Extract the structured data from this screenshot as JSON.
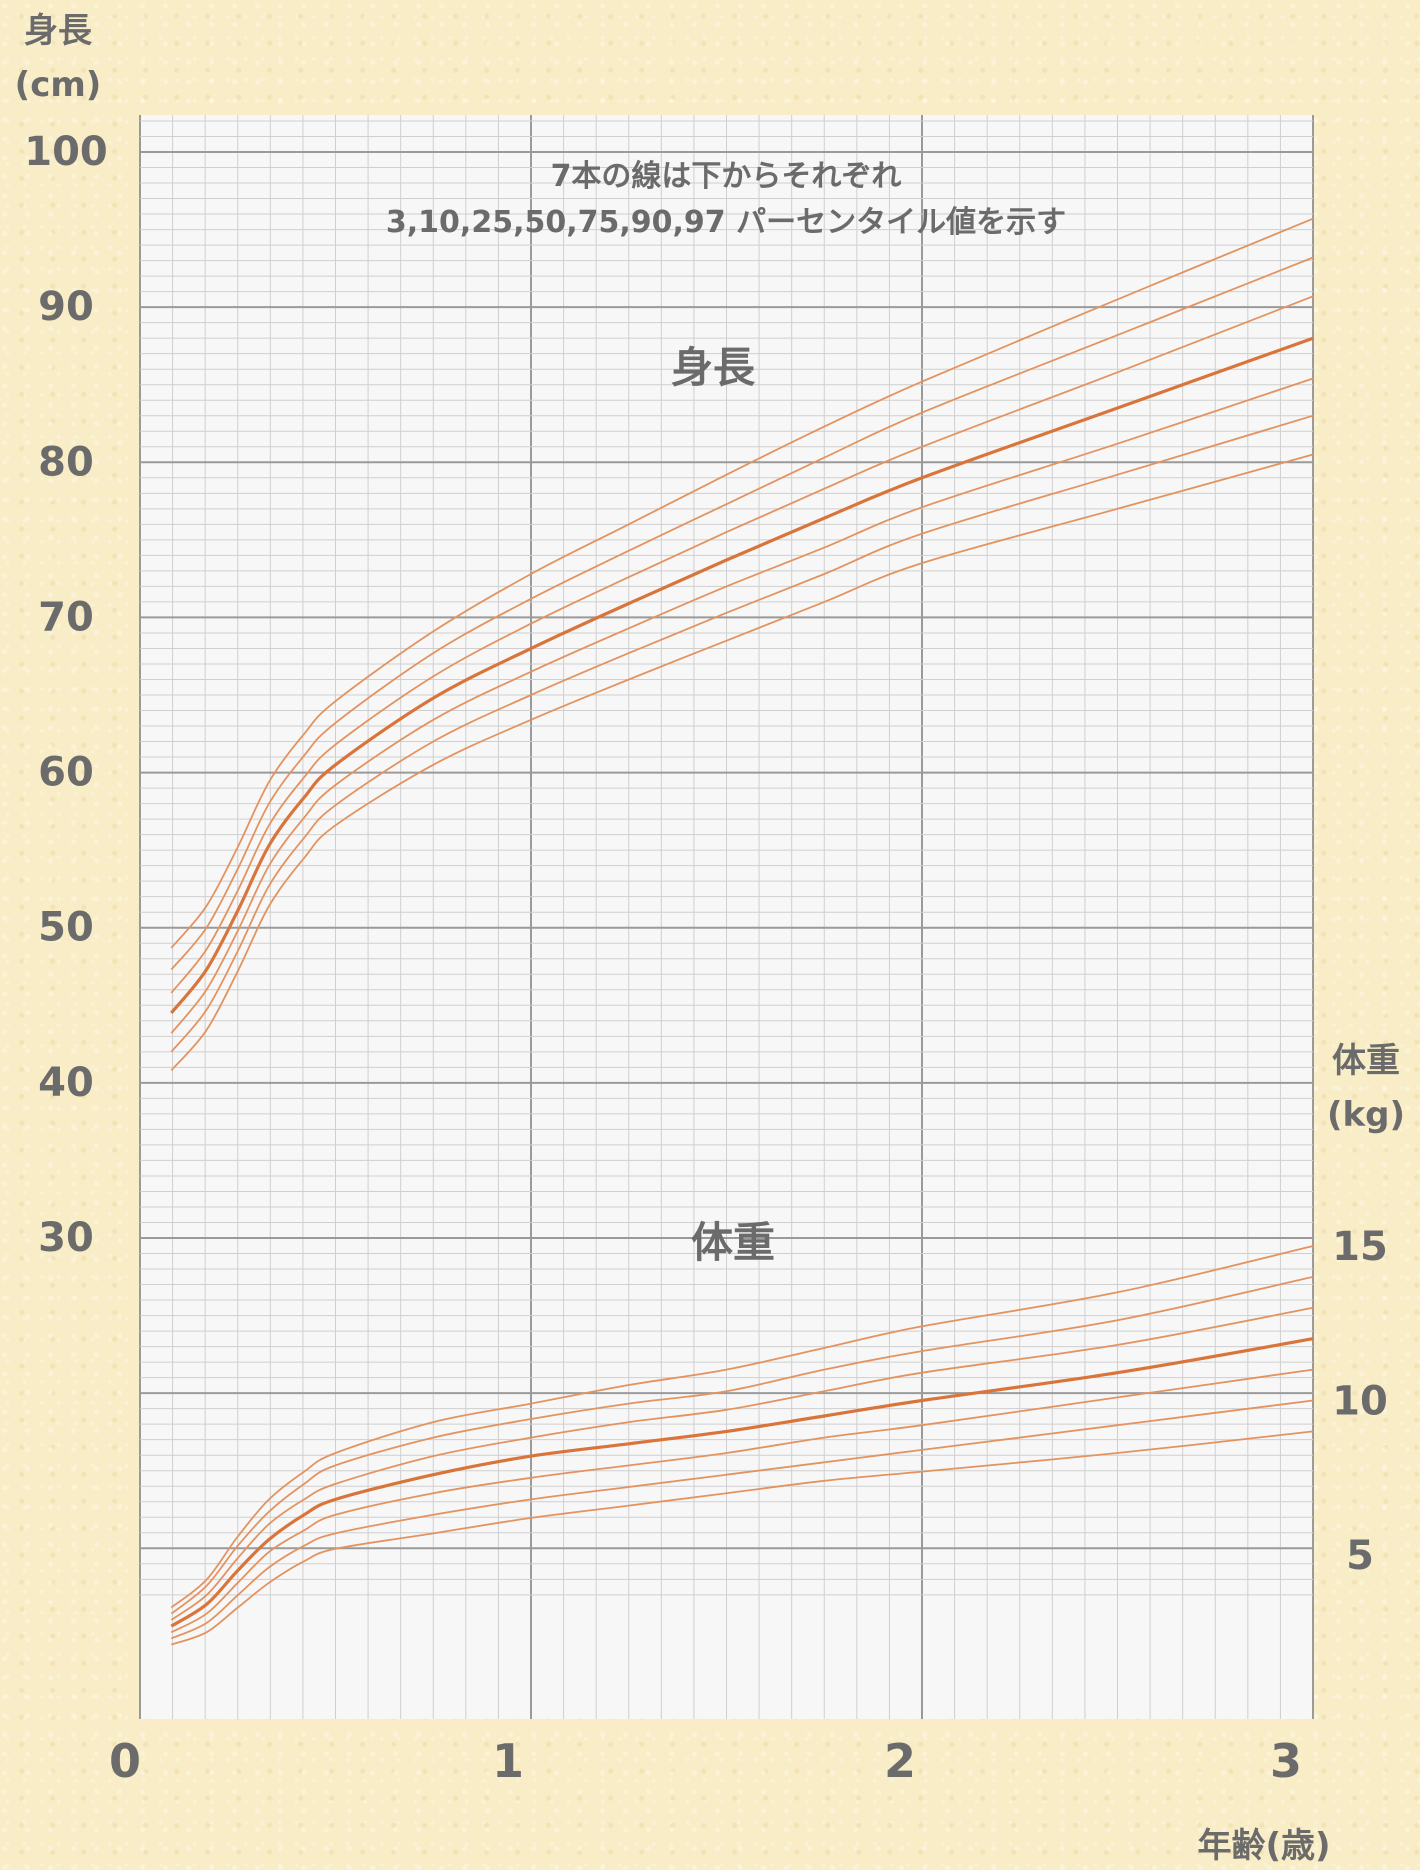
{
  "chart_data": {
    "type": "line",
    "note_line1": "7本の線は下からそれぞれ",
    "note_line2": "3,10,25,50,75,90,97 パーセンタイル値を示す",
    "height_axis_label": [
      "身長",
      "(cm)"
    ],
    "weight_axis_label": [
      "体重",
      "(kg)"
    ],
    "xlabel": "年齢(歳)",
    "height_series_label": "身長",
    "weight_series_label": "体重",
    "xlim": [
      0,
      3
    ],
    "height_ylim": [
      25,
      100
    ],
    "weight_ylim": [
      0,
      17
    ],
    "x_ticks": [
      "0",
      "1",
      "2",
      "3"
    ],
    "height_ticks": [
      "100",
      "90",
      "80",
      "70",
      "60",
      "50",
      "40",
      "30"
    ],
    "weight_ticks": [
      "15",
      "10",
      "5"
    ],
    "percentiles": [
      3,
      10,
      25,
      50,
      75,
      90,
      97
    ],
    "x": [
      0.08,
      0.17,
      0.25,
      0.33,
      0.42,
      0.5,
      0.75,
      1.0,
      1.25,
      1.5,
      1.75,
      2.0,
      2.5,
      3.0
    ],
    "height_series": [
      {
        "percentile": 3,
        "values": [
          40.8,
          43.4,
          47.2,
          51.4,
          54.5,
          56.6,
          60.5,
          63.4,
          66.0,
          68.5,
          71.0,
          73.5,
          77.0,
          80.5
        ]
      },
      {
        "percentile": 10,
        "values": [
          42.0,
          44.7,
          48.5,
          52.7,
          55.8,
          57.9,
          62.0,
          65.0,
          67.7,
          70.3,
          72.8,
          75.4,
          79.2,
          83.0
        ]
      },
      {
        "percentile": 25,
        "values": [
          43.2,
          46.0,
          49.8,
          54.0,
          57.1,
          59.2,
          63.4,
          66.5,
          69.3,
          72.0,
          74.5,
          77.1,
          81.2,
          85.4
        ]
      },
      {
        "percentile": 50,
        "values": [
          44.5,
          47.3,
          51.1,
          55.3,
          58.4,
          60.5,
          64.8,
          68.0,
          70.9,
          73.7,
          76.4,
          79.0,
          83.5,
          88.0
        ]
      },
      {
        "percentile": 75,
        "values": [
          45.8,
          48.6,
          52.4,
          56.6,
          59.7,
          61.8,
          66.2,
          69.6,
          72.6,
          75.5,
          78.3,
          81.0,
          85.8,
          90.7
        ]
      },
      {
        "percentile": 90,
        "values": [
          47.3,
          50.0,
          53.8,
          58.0,
          61.1,
          63.2,
          67.7,
          71.2,
          74.3,
          77.3,
          80.3,
          83.2,
          88.2,
          93.2
        ]
      },
      {
        "percentile": 97,
        "values": [
          48.7,
          51.4,
          55.2,
          59.4,
          62.5,
          64.6,
          69.1,
          72.8,
          76.0,
          79.2,
          82.3,
          85.2,
          90.5,
          95.7
        ]
      }
    ],
    "weight_series": [
      {
        "percentile": 3,
        "values": [
          2.1,
          2.5,
          3.3,
          4.1,
          4.8,
          5.2,
          5.7,
          6.2,
          6.6,
          7.0,
          7.4,
          7.7,
          8.3,
          9.0
        ]
      },
      {
        "percentile": 10,
        "values": [
          2.3,
          2.8,
          3.7,
          4.6,
          5.3,
          5.7,
          6.3,
          6.8,
          7.2,
          7.6,
          8.0,
          8.4,
          9.2,
          10.0
        ]
      },
      {
        "percentile": 25,
        "values": [
          2.5,
          3.1,
          4.1,
          5.1,
          5.8,
          6.3,
          7.0,
          7.5,
          7.9,
          8.3,
          8.8,
          9.2,
          10.1,
          11.0
        ]
      },
      {
        "percentile": 50,
        "values": [
          2.7,
          3.4,
          4.5,
          5.5,
          6.3,
          6.8,
          7.6,
          8.2,
          8.6,
          9.0,
          9.5,
          10.0,
          10.9,
          12.0
        ]
      },
      {
        "percentile": 75,
        "values": [
          2.9,
          3.7,
          4.9,
          6.0,
          6.8,
          7.3,
          8.2,
          8.8,
          9.3,
          9.7,
          10.3,
          10.9,
          11.8,
          13.0
        ]
      },
      {
        "percentile": 90,
        "values": [
          3.1,
          4.0,
          5.3,
          6.4,
          7.3,
          7.9,
          8.8,
          9.4,
          9.9,
          10.3,
          11.0,
          11.6,
          12.6,
          14.0
        ]
      },
      {
        "percentile": 97,
        "values": [
          3.3,
          4.2,
          5.6,
          6.8,
          7.7,
          8.3,
          9.3,
          9.9,
          10.5,
          11.0,
          11.7,
          12.4,
          13.5,
          15.0
        ]
      }
    ],
    "grid": true,
    "line_color": "#e39360",
    "median_color": "#d9743a",
    "text_color": "#6b6b6b"
  }
}
